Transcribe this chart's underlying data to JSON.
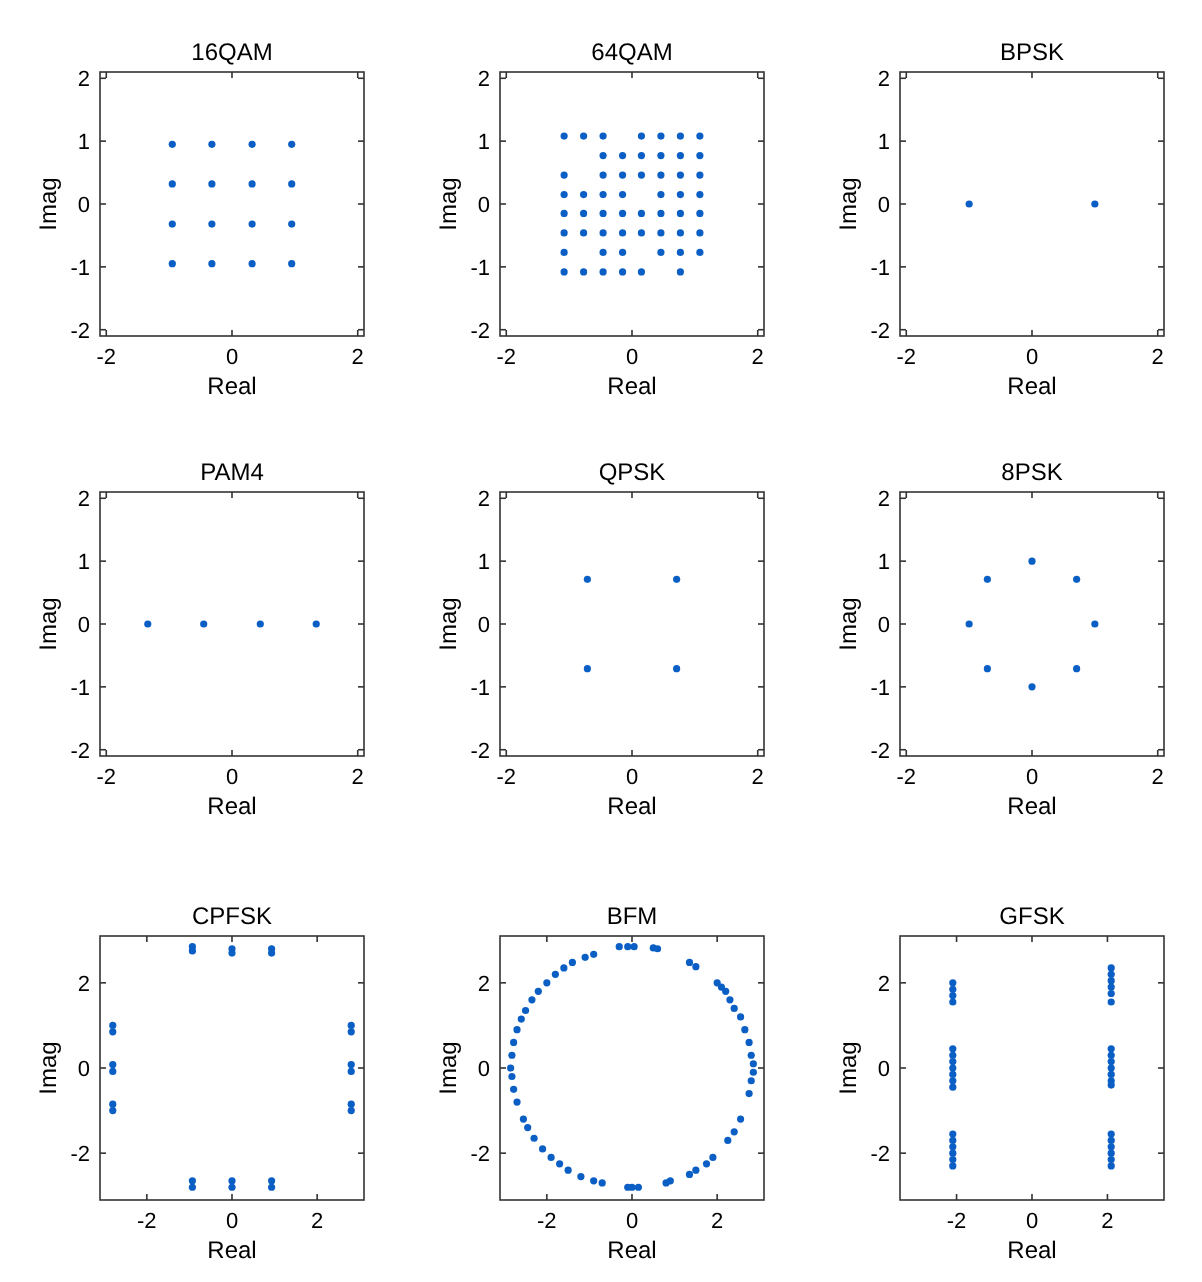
{
  "chart_data": [
    {
      "type": "scatter",
      "title": "16QAM",
      "xlabel": "Real",
      "ylabel": "Imag",
      "color": "#0b5fc4",
      "marker": "circle",
      "xlim": [
        -2.1,
        2.1
      ],
      "ylim": [
        -2.1,
        2.1
      ],
      "xticks": [
        -2,
        0,
        2
      ],
      "yticks": [
        -2,
        -1,
        0,
        1,
        2
      ],
      "x": [
        -0.95,
        -0.32,
        0.32,
        0.95,
        -0.95,
        -0.32,
        0.32,
        0.95,
        -0.95,
        -0.32,
        0.32,
        0.95,
        -0.95,
        -0.32,
        0.32,
        0.95
      ],
      "values": [
        0.95,
        0.95,
        0.95,
        0.95,
        0.32,
        0.32,
        0.32,
        0.32,
        -0.32,
        -0.32,
        -0.32,
        -0.32,
        -0.95,
        -0.95,
        -0.95,
        -0.95
      ]
    },
    {
      "type": "scatter",
      "title": "64QAM",
      "xlabel": "Real",
      "ylabel": "Imag",
      "color": "#0b5fc4",
      "marker": "circle",
      "xlim": [
        -2.1,
        2.1
      ],
      "ylim": [
        -2.1,
        2.1
      ],
      "xticks": [
        -2,
        0,
        2
      ],
      "yticks": [
        -2,
        -1,
        0,
        1,
        2
      ],
      "x": [
        -1.08,
        -0.77,
        -0.46,
        0.15,
        0.46,
        0.77,
        1.08,
        -0.46,
        -0.15,
        0.15,
        0.46,
        0.77,
        1.08,
        -1.08,
        -0.46,
        -0.15,
        0.15,
        0.46,
        0.77,
        1.08,
        -1.08,
        -0.77,
        -0.46,
        -0.15,
        0.46,
        0.77,
        1.08,
        -1.08,
        -0.77,
        -0.46,
        -0.15,
        0.15,
        0.46,
        0.77,
        1.08,
        -1.08,
        -0.77,
        -0.46,
        -0.15,
        0.15,
        0.46,
        0.77,
        1.08,
        -1.08,
        -0.46,
        -0.15,
        0.46,
        0.77,
        1.08,
        -1.08,
        -0.77,
        -0.46,
        -0.15,
        0.15,
        0.77
      ],
      "values": [
        1.08,
        1.08,
        1.08,
        1.08,
        1.08,
        1.08,
        1.08,
        0.77,
        0.77,
        0.77,
        0.77,
        0.77,
        0.77,
        0.46,
        0.46,
        0.46,
        0.46,
        0.46,
        0.46,
        0.46,
        0.15,
        0.15,
        0.15,
        0.15,
        0.15,
        0.15,
        0.15,
        -0.15,
        -0.15,
        -0.15,
        -0.15,
        -0.15,
        -0.15,
        -0.15,
        -0.15,
        -0.46,
        -0.46,
        -0.46,
        -0.46,
        -0.46,
        -0.46,
        -0.46,
        -0.46,
        -0.77,
        -0.77,
        -0.77,
        -0.77,
        -0.77,
        -0.77,
        -1.08,
        -1.08,
        -1.08,
        -1.08,
        -1.08,
        -1.08
      ]
    },
    {
      "type": "scatter",
      "title": "BPSK",
      "xlabel": "Real",
      "ylabel": "Imag",
      "color": "#0b5fc4",
      "marker": "circle",
      "xlim": [
        -2.1,
        2.1
      ],
      "ylim": [
        -2.1,
        2.1
      ],
      "xticks": [
        -2,
        0,
        2
      ],
      "yticks": [
        -2,
        -1,
        0,
        1,
        2
      ],
      "x": [
        -1,
        1
      ],
      "values": [
        0,
        0
      ]
    },
    {
      "type": "scatter",
      "title": "PAM4",
      "xlabel": "Real",
      "ylabel": "Imag",
      "color": "#0b5fc4",
      "marker": "circle",
      "xlim": [
        -2.1,
        2.1
      ],
      "ylim": [
        -2.1,
        2.1
      ],
      "xticks": [
        -2,
        0,
        2
      ],
      "yticks": [
        -2,
        -1,
        0,
        1,
        2
      ],
      "x": [
        -1.34,
        -0.45,
        0.45,
        1.34
      ],
      "values": [
        0,
        0,
        0,
        0
      ]
    },
    {
      "type": "scatter",
      "title": "QPSK",
      "xlabel": "Real",
      "ylabel": "Imag",
      "color": "#0b5fc4",
      "marker": "circle",
      "xlim": [
        -2.1,
        2.1
      ],
      "ylim": [
        -2.1,
        2.1
      ],
      "xticks": [
        -2,
        0,
        2
      ],
      "yticks": [
        -2,
        -1,
        0,
        1,
        2
      ],
      "x": [
        -0.71,
        0.71,
        -0.71,
        0.71
      ],
      "values": [
        0.71,
        0.71,
        -0.71,
        -0.71
      ]
    },
    {
      "type": "scatter",
      "title": "8PSK",
      "xlabel": "Real",
      "ylabel": "Imag",
      "color": "#0b5fc4",
      "marker": "circle",
      "xlim": [
        -2.1,
        2.1
      ],
      "ylim": [
        -2.1,
        2.1
      ],
      "xticks": [
        -2,
        0,
        2
      ],
      "yticks": [
        -2,
        -1,
        0,
        1,
        2
      ],
      "x": [
        1,
        0.71,
        0,
        -0.71,
        -1,
        -0.71,
        0,
        0.71
      ],
      "values": [
        0,
        0.71,
        1,
        0.71,
        0,
        -0.71,
        -1,
        -0.71
      ]
    },
    {
      "type": "scatter",
      "title": "CPFSK",
      "xlabel": "Real",
      "ylabel": "Imag",
      "color": "#0b5fc4",
      "marker": "circle",
      "xlim": [
        -3.1,
        3.1
      ],
      "ylim": [
        -3.1,
        3.1
      ],
      "xticks": [
        -2,
        0,
        2
      ],
      "yticks": [
        -2,
        0,
        2
      ],
      "x": [
        -2.8,
        -2.8,
        -2.8,
        -2.8,
        -2.8,
        -2.8,
        2.8,
        2.8,
        2.8,
        2.8,
        2.8,
        2.8,
        -0.93,
        -0.93,
        0,
        0,
        0.93,
        0.93,
        -0.93,
        -0.93,
        0,
        0,
        0.93,
        0.93
      ],
      "values": [
        1.0,
        0.85,
        0.08,
        -0.08,
        -0.85,
        -1.0,
        1.0,
        0.85,
        0.08,
        -0.08,
        -0.85,
        -1.0,
        2.85,
        2.75,
        2.8,
        2.7,
        2.8,
        2.7,
        -2.65,
        -2.8,
        -2.65,
        -2.8,
        -2.65,
        -2.8
      ]
    },
    {
      "type": "scatter",
      "title": "BFM",
      "xlabel": "Real",
      "ylabel": "Imag",
      "color": "#0b5fc4",
      "marker": "circle",
      "xlim": [
        -3.1,
        3.1
      ],
      "ylim": [
        -3.1,
        3.1
      ],
      "xticks": [
        -2,
        0,
        2
      ],
      "yticks": [
        -2,
        0,
        2
      ],
      "x": [
        -0.3,
        -0.1,
        0.05,
        0.5,
        0.6,
        1.35,
        1.5,
        2.0,
        2.1,
        2.2,
        2.3,
        2.4,
        2.55,
        2.65,
        2.75,
        2.8,
        2.85,
        2.85,
        2.8,
        2.75,
        2.55,
        2.4,
        2.25,
        1.9,
        1.75,
        1.5,
        1.35,
        0.9,
        0.8,
        0.15,
        0,
        -0.1,
        -0.7,
        -0.9,
        -1.2,
        -1.5,
        -1.7,
        -1.9,
        -2.1,
        -2.3,
        -2.45,
        -2.55,
        -2.7,
        -2.78,
        -2.82,
        -2.85,
        -2.82,
        -2.78,
        -2.7,
        -2.6,
        -2.5,
        -2.35,
        -2.2,
        -2.0,
        -1.8,
        -1.6,
        -1.4,
        -1.1,
        -0.9
      ],
      "values": [
        2.85,
        2.85,
        2.85,
        2.82,
        2.8,
        2.48,
        2.38,
        2.0,
        1.9,
        1.8,
        1.6,
        1.4,
        1.2,
        0.9,
        0.6,
        0.3,
        0.1,
        -0.1,
        -0.3,
        -0.6,
        -1.2,
        -1.5,
        -1.7,
        -2.1,
        -2.25,
        -2.4,
        -2.5,
        -2.65,
        -2.7,
        -2.8,
        -2.8,
        -2.8,
        -2.7,
        -2.65,
        -2.55,
        -2.4,
        -2.25,
        -2.1,
        -1.9,
        -1.65,
        -1.4,
        -1.2,
        -0.8,
        -0.5,
        -0.2,
        0,
        0.3,
        0.6,
        0.9,
        1.15,
        1.35,
        1.6,
        1.8,
        2.0,
        2.2,
        2.35,
        2.48,
        2.6,
        2.67
      ]
    },
    {
      "type": "scatter",
      "title": "GFSK",
      "xlabel": "Real",
      "ylabel": "Imag",
      "color": "#0b5fc4",
      "marker": "circle",
      "xlim": [
        -3.5,
        3.5
      ],
      "ylim": [
        -3.1,
        3.1
      ],
      "xticks": [
        -2,
        0,
        2
      ],
      "yticks": [
        -2,
        0,
        2
      ],
      "x": [
        -2.1,
        -2.1,
        -2.1,
        -2.1,
        -2.1,
        -2.1,
        -2.1,
        -2.1,
        -2.1,
        -2.1,
        -2.1,
        -2.1,
        -2.1,
        -2.1,
        -2.1,
        -2.1,
        -2.1,
        2.1,
        2.1,
        2.1,
        2.1,
        2.1,
        2.1,
        2.1,
        2.1,
        2.1,
        2.1,
        2.1,
        2.1,
        2.1,
        2.1,
        2.1,
        2.1,
        2.1,
        2.1,
        2.1
      ],
      "values": [
        2.0,
        1.85,
        1.7,
        1.55,
        0.45,
        0.3,
        0.15,
        0,
        -0.15,
        -0.3,
        -0.45,
        -1.55,
        -1.7,
        -1.85,
        -2.0,
        -2.15,
        -2.3,
        2.35,
        2.2,
        2.05,
        1.9,
        1.75,
        1.55,
        0.45,
        0.3,
        0.15,
        0,
        -0.15,
        -0.3,
        -0.4,
        -1.55,
        -1.7,
        -1.85,
        -2.0,
        -2.15,
        -2.3
      ]
    }
  ]
}
